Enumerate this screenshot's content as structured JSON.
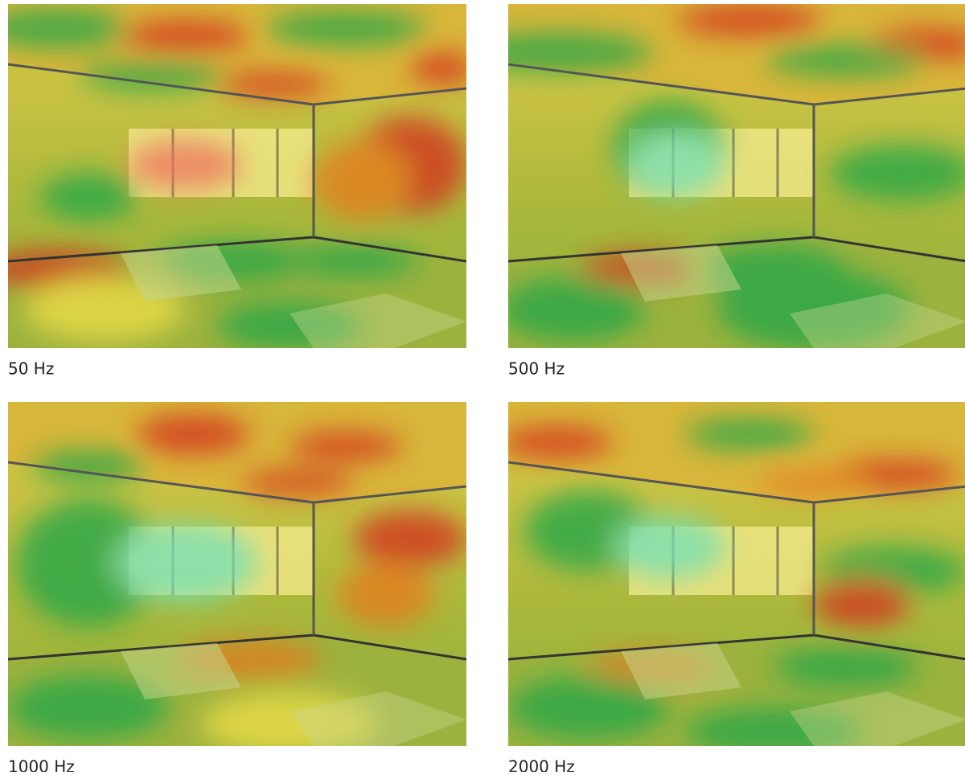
{
  "panels": [
    {
      "label": "50 Hz"
    },
    {
      "label": "500 Hz"
    },
    {
      "label": "1000 Hz"
    },
    {
      "label": "2000 Hz"
    }
  ]
}
